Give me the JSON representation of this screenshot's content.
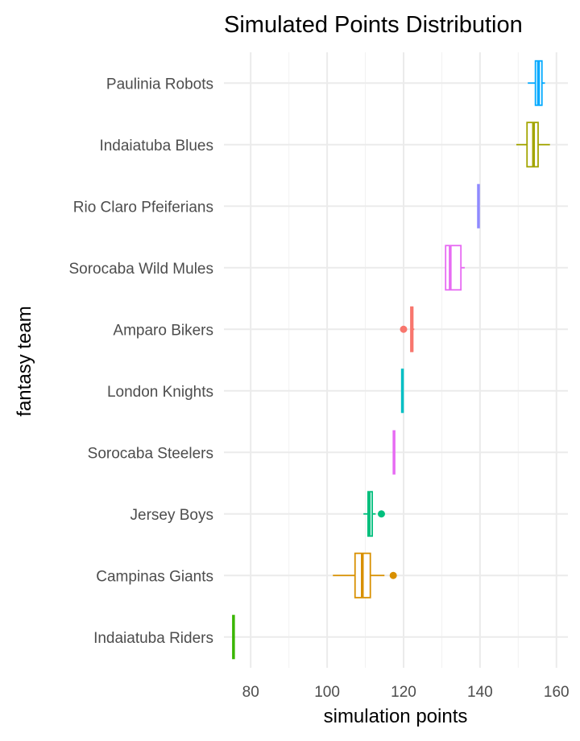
{
  "chart_data": {
    "type": "boxplot",
    "orientation": "horizontal",
    "title": "Simulated Points Distribution",
    "xlabel": "simulation points",
    "ylabel": "fantasy team",
    "xlim": [
      73,
      163
    ],
    "xticks": [
      80,
      100,
      120,
      140,
      160
    ],
    "grid": true,
    "legend": "none",
    "categories": [
      "Paulinia Robots",
      "Indaiatuba Blues",
      "Rio Claro Pfeiferians",
      "Sorocaba Wild Mules",
      "Amparo Bikers",
      "London Knights",
      "Sorocaba Steelers",
      "Jersey Boys",
      "Campinas Giants",
      "Indaiatuba Riders"
    ],
    "boxes": [
      {
        "team": "Paulinia Robots",
        "color": "#00A9FF",
        "min": 152.5,
        "q1": 154.5,
        "median": 155.3,
        "q3": 156.2,
        "max": 157,
        "outliers": []
      },
      {
        "team": "Indaiatuba Blues",
        "color": "#A3A500",
        "min": 149.5,
        "q1": 152.3,
        "median": 154.0,
        "q3": 155.2,
        "max": 158.3,
        "outliers": []
      },
      {
        "team": "Rio Claro Pfeiferians",
        "color": "#8F8AFF",
        "min": 139.6,
        "q1": 139.6,
        "median": 139.6,
        "q3": 139.6,
        "max": 139.6,
        "outliers": []
      },
      {
        "team": "Sorocaba Wild Mules",
        "color": "#E76BF3",
        "min": 131.0,
        "q1": 131.0,
        "median": 132.2,
        "q3": 135.0,
        "max": 136.0,
        "outliers": []
      },
      {
        "team": "Amparo Bikers",
        "color": "#F8766D",
        "min": 121.8,
        "q1": 121.9,
        "median": 122.2,
        "q3": 122.4,
        "max": 122.8,
        "outliers": [
          120.0
        ]
      },
      {
        "team": "London Knights",
        "color": "#00BFC4",
        "min": 119.7,
        "q1": 119.7,
        "median": 119.7,
        "q3": 119.7,
        "max": 119.7,
        "outliers": []
      },
      {
        "team": "Sorocaba Steelers",
        "color": "#E76BF3",
        "min": 117.5,
        "q1": 117.5,
        "median": 117.5,
        "q3": 117.5,
        "max": 117.5,
        "outliers": []
      },
      {
        "team": "Jersey Boys",
        "color": "#00BF7D",
        "min": 109.5,
        "q1": 110.7,
        "median": 111.0,
        "q3": 111.8,
        "max": 112.7,
        "outliers": [
          114.2
        ]
      },
      {
        "team": "Campinas Giants",
        "color": "#D89000",
        "min": 101.5,
        "q1": 107.3,
        "median": 109.2,
        "q3": 111.3,
        "max": 115.0,
        "outliers": [
          117.3
        ]
      },
      {
        "team": "Indaiatuba Riders",
        "color": "#39B600",
        "min": 75.5,
        "q1": 75.5,
        "median": 75.5,
        "q3": 75.5,
        "max": 75.5,
        "outliers": []
      }
    ]
  }
}
